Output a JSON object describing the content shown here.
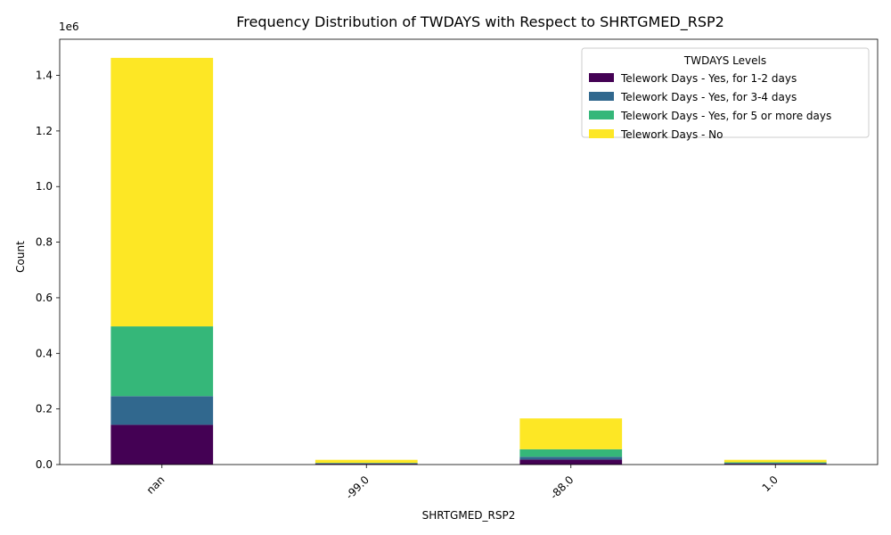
{
  "chart_data": {
    "type": "bar",
    "stacked": true,
    "title": "Frequency Distribution of TWDAYS with Respect to SHRTGMED_RSP2",
    "xlabel": "SHRTGMED_RSP2",
    "ylabel": "Count",
    "y_offset_label": "1e6",
    "ylim": [
      0,
      1530000
    ],
    "yticks": [
      0,
      200000,
      400000,
      600000,
      800000,
      1000000,
      1200000,
      1400000
    ],
    "ytick_labels": [
      "0.0",
      "0.2",
      "0.4",
      "0.6",
      "0.8",
      "1.0",
      "1.2",
      "1.4"
    ],
    "categories": [
      "nan",
      "-99.0",
      "-88.0",
      "1.0"
    ],
    "grid": false,
    "legend": {
      "title": "TWDAYS Levels",
      "placement": "top-right"
    },
    "series": [
      {
        "name": "Telework Days - Yes, for 1-2 days",
        "color": "#440154",
        "values": [
          143000,
          3000,
          18000,
          3000
        ]
      },
      {
        "name": "Telework Days - Yes, for 3-4 days",
        "color": "#31688e",
        "values": [
          103000,
          1500,
          10000,
          2500
        ]
      },
      {
        "name": "Telework Days - Yes, for 5 or more days",
        "color": "#35b779",
        "values": [
          251000,
          1500,
          27000,
          2500
        ]
      },
      {
        "name": "Telework Days - No",
        "color": "#fde725",
        "values": [
          966000,
          11000,
          111000,
          9000
        ]
      }
    ]
  }
}
